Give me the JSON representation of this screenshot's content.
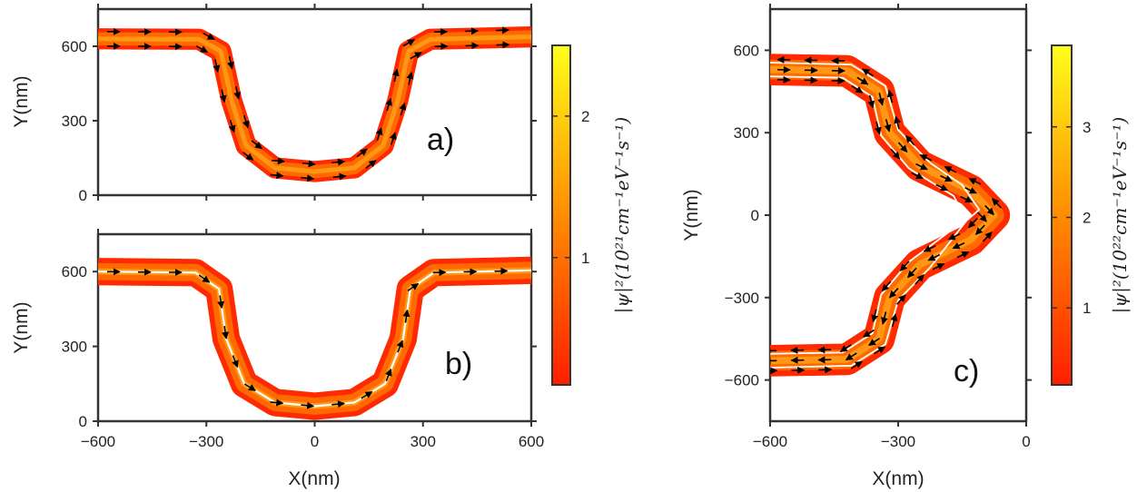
{
  "chart_data": [
    {
      "panel": "a)",
      "type": "heatmap",
      "xlabel": "",
      "ylabel": "Y(nm)",
      "xlim": [
        -600,
        600
      ],
      "ylim": [
        0,
        750
      ],
      "xticks": [],
      "yticks": [
        0,
        300,
        600
      ],
      "bands": [
        {
          "centerline": [
            [
              -600,
              630
            ],
            [
              -320,
              628
            ],
            [
              -260,
              580
            ],
            [
              -230,
              380
            ],
            [
              -190,
              200
            ],
            [
              -110,
              110
            ],
            [
              0,
              95
            ],
            [
              110,
              110
            ],
            [
              190,
              200
            ],
            [
              230,
              380
            ],
            [
              260,
              580
            ],
            [
              320,
              628
            ],
            [
              600,
              638
            ]
          ],
          "width": 85
        }
      ],
      "current_arrows": "along the edge channel",
      "colorbar": {
        "label": "|ψ|²(10²¹cm⁻¹eV⁻¹s⁻¹)",
        "ticks": [
          1,
          2
        ],
        "range": [
          0.1,
          2.5
        ],
        "colormap": [
          "#ff1e00",
          "#ff8c00",
          "#ffff1a"
        ]
      }
    },
    {
      "panel": "b)",
      "type": "heatmap",
      "xlabel": "X(nm)",
      "ylabel": "Y(nm)",
      "xlim": [
        -600,
        600
      ],
      "ylim": [
        0,
        750
      ],
      "xticks": [
        -600,
        -300,
        0,
        300,
        600
      ],
      "yticks": [
        0,
        300,
        600
      ],
      "bands": [
        {
          "centerline": [
            [
              -600,
              600
            ],
            [
              -330,
              596
            ],
            [
              -265,
              530
            ],
            [
              -245,
              330
            ],
            [
              -195,
              150
            ],
            [
              -110,
              75
            ],
            [
              0,
              60
            ],
            [
              110,
              75
            ],
            [
              195,
              150
            ],
            [
              245,
              330
            ],
            [
              265,
              530
            ],
            [
              330,
              596
            ],
            [
              600,
              605
            ]
          ],
          "width": 110
        },
        {
          "centerline": [
            [
              -600,
              600
            ],
            [
              -330,
              596
            ],
            [
              -265,
              530
            ],
            [
              -245,
              330
            ],
            [
              -195,
              150
            ],
            [
              -110,
              75
            ],
            [
              0,
              60
            ],
            [
              110,
              75
            ],
            [
              195,
              150
            ],
            [
              245,
              330
            ],
            [
              265,
              530
            ],
            [
              330,
              596
            ],
            [
              600,
              605
            ]
          ],
          "width": 8,
          "color": "#ffffff"
        }
      ],
      "current_arrows": "along both edge channels",
      "colorbar": null
    },
    {
      "panel": "c)",
      "type": "heatmap",
      "xlabel": "X(nm)",
      "ylabel": "Y(nm)",
      "xlim": [
        -600,
        0
      ],
      "ylim": [
        -750,
        750
      ],
      "xticks": [
        -600,
        -300,
        0
      ],
      "yticks": [
        -600,
        -300,
        0,
        300,
        600
      ],
      "bands": [
        {
          "centerline": [
            [
              -600,
              530
            ],
            [
              -420,
              525
            ],
            [
              -345,
              450
            ],
            [
              -320,
              300
            ],
            [
              -250,
              180
            ],
            [
              -130,
              90
            ],
            [
              -75,
              0
            ],
            [
              -130,
              -90
            ],
            [
              -250,
              -180
            ],
            [
              -320,
              -300
            ],
            [
              -345,
              -450
            ],
            [
              -420,
              -525
            ],
            [
              -600,
              -530
            ]
          ],
          "width": 115
        },
        {
          "centerline": [
            [
              -600,
              555
            ],
            [
              -410,
              548
            ],
            [
              -330,
              470
            ],
            [
              -300,
              310
            ],
            [
              -225,
              190
            ],
            [
              -150,
              110
            ],
            [
              -110,
              20
            ],
            [
              -140,
              -20
            ],
            [
              -225,
              -190
            ],
            [
              -300,
              -310
            ],
            [
              -330,
              -470
            ],
            [
              -410,
              -548
            ],
            [
              -600,
              -555
            ]
          ],
          "width": 6,
          "color": "#ffffff"
        },
        {
          "centerline": [
            [
              -600,
              505
            ],
            [
              -430,
              500
            ],
            [
              -360,
              430
            ],
            [
              -340,
              290
            ],
            [
              -275,
              170
            ],
            [
              -170,
              70
            ],
            [
              -150,
              10
            ],
            [
              -180,
              -60
            ],
            [
              -275,
              -170
            ],
            [
              -340,
              -290
            ],
            [
              -360,
              -430
            ],
            [
              -430,
              -500
            ],
            [
              -600,
              -505
            ]
          ],
          "width": 6,
          "color": "#ffffff"
        }
      ],
      "current_arrows": "along the edge channels around the tip",
      "colorbar": {
        "label": "|ψ|²(10²²cm⁻¹eV⁻¹s⁻¹)",
        "ticks": [
          1,
          2,
          3
        ],
        "range": [
          0.15,
          3.9
        ],
        "colormap": [
          "#ff1e00",
          "#ff8c00",
          "#ffff1a"
        ]
      }
    }
  ]
}
